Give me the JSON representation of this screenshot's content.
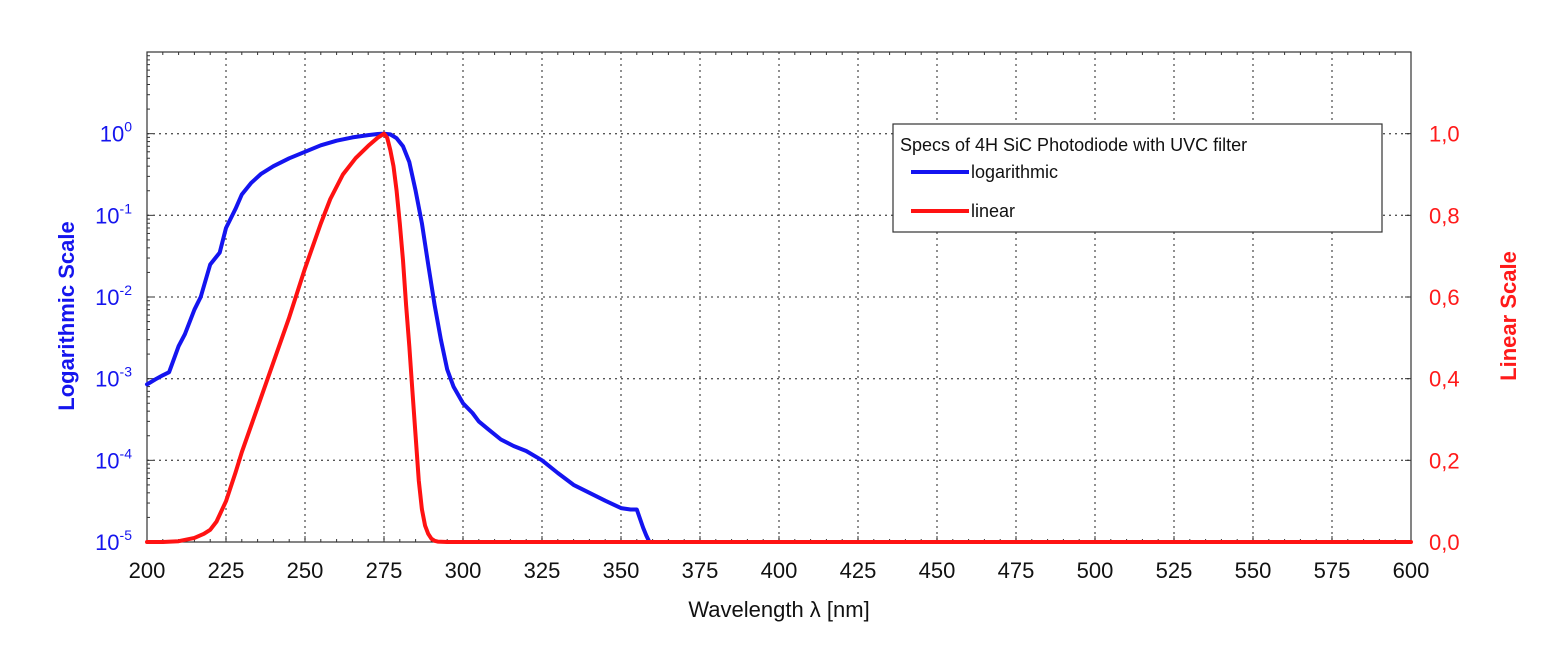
{
  "chart_data": {
    "type": "line",
    "xlabel": "Wavelength λ [nm]",
    "ylabel_left": "Logarithmic Scale",
    "ylabel_right": "Linear Scale",
    "xlim": [
      200,
      600
    ],
    "x_ticks": [
      200,
      225,
      250,
      275,
      300,
      325,
      350,
      375,
      400,
      425,
      450,
      475,
      500,
      525,
      550,
      575,
      600
    ],
    "y_left": {
      "scale": "log",
      "lim": [
        1e-05,
        10
      ],
      "ticks": [
        {
          "value": 1,
          "base": "10",
          "exp": "0"
        },
        {
          "value": 0.1,
          "base": "10",
          "exp": "-1"
        },
        {
          "value": 0.01,
          "base": "10",
          "exp": "-2"
        },
        {
          "value": 0.001,
          "base": "10",
          "exp": "-3"
        },
        {
          "value": 0.0001,
          "base": "10",
          "exp": "-4"
        },
        {
          "value": 1e-05,
          "base": "10",
          "exp": "-5"
        }
      ],
      "color": "#1515ee"
    },
    "y_right": {
      "scale": "linear",
      "lim": [
        0,
        1.2
      ],
      "ticks": [
        {
          "value": 1.0,
          "label": "1,0"
        },
        {
          "value": 0.8,
          "label": "0,8"
        },
        {
          "value": 0.6,
          "label": "0,6"
        },
        {
          "value": 0.4,
          "label": "0,4"
        },
        {
          "value": 0.2,
          "label": "0,2"
        },
        {
          "value": 0.0,
          "label": "0,0"
        }
      ],
      "color": "#ff1a1a"
    },
    "grid": true,
    "legend": {
      "title": "Specs of 4H SiC Photodiode with UVC filter",
      "placement": "top-right"
    },
    "series": [
      {
        "name": "logarithmic",
        "axis": "left",
        "color": "#1414f0",
        "x": [
          200,
          203,
          205,
          207,
          210,
          212,
          215,
          217,
          220,
          223,
          225,
          228,
          230,
          233,
          236,
          240,
          245,
          250,
          255,
          260,
          265,
          270,
          273,
          275,
          277,
          279,
          281,
          283,
          285,
          287,
          289,
          291,
          293,
          295,
          297,
          300,
          303,
          305,
          308,
          312,
          316,
          320,
          325,
          330,
          335,
          340,
          345,
          350,
          353,
          355,
          357,
          358,
          359,
          360
        ],
        "y": [
          0.00085,
          0.001,
          0.0011,
          0.0012,
          0.0025,
          0.0035,
          0.007,
          0.01,
          0.025,
          0.035,
          0.07,
          0.12,
          0.18,
          0.25,
          0.32,
          0.4,
          0.5,
          0.6,
          0.72,
          0.82,
          0.9,
          0.96,
          0.99,
          1.0,
          0.98,
          0.88,
          0.7,
          0.45,
          0.2,
          0.08,
          0.025,
          0.008,
          0.003,
          0.0013,
          0.0008,
          0.0005,
          0.00038,
          0.0003,
          0.00024,
          0.00018,
          0.00015,
          0.00013,
          0.0001,
          7e-05,
          5e-05,
          4e-05,
          3.2e-05,
          2.6e-05,
          2.5e-05,
          2.5e-05,
          1.5e-05,
          1.2e-05,
          1e-05,
          1e-05
        ]
      },
      {
        "name": "linear",
        "axis": "right",
        "color": "#ff1212",
        "x": [
          200,
          205,
          210,
          215,
          218,
          220,
          222,
          225,
          228,
          230,
          235,
          240,
          245,
          250,
          255,
          258,
          262,
          266,
          270,
          273,
          275,
          276,
          277,
          278,
          279,
          280,
          281,
          282,
          283,
          284,
          285,
          286,
          287,
          288,
          289,
          290,
          291,
          292,
          295,
          300,
          350,
          400,
          450,
          500,
          550,
          600
        ],
        "y": [
          0.0,
          0.0,
          0.002,
          0.01,
          0.02,
          0.03,
          0.05,
          0.1,
          0.17,
          0.22,
          0.33,
          0.44,
          0.55,
          0.67,
          0.78,
          0.84,
          0.9,
          0.94,
          0.97,
          0.99,
          1.0,
          0.99,
          0.96,
          0.92,
          0.86,
          0.78,
          0.69,
          0.58,
          0.48,
          0.37,
          0.26,
          0.15,
          0.08,
          0.04,
          0.02,
          0.008,
          0.003,
          0.001,
          0.0,
          0.0,
          0.0,
          0.0,
          0.0,
          0.0,
          0.0,
          0.0
        ]
      }
    ]
  }
}
